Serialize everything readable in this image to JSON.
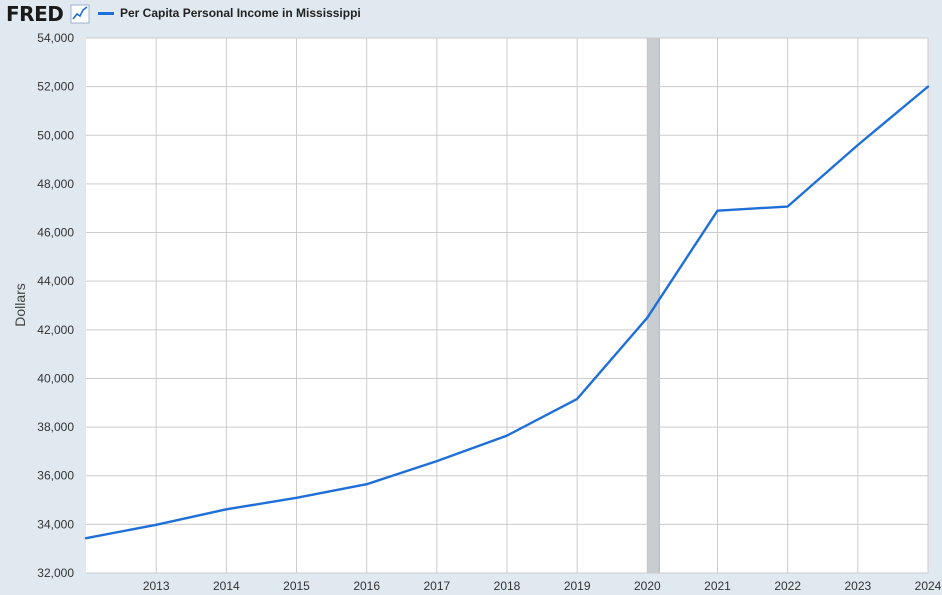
{
  "header": {
    "logo_text": "FRED",
    "logo_icon": "line-chart-icon",
    "legend_label": "Per Capita Personal Income in Mississippi"
  },
  "colors": {
    "line": "#1f6fd8",
    "background": "#e1e9f0",
    "plot_area": "#ffffff",
    "grid": "#cccccc",
    "recession": "#c8cdd2"
  },
  "chart_data": {
    "type": "line",
    "ylabel": "Dollars",
    "ylim": [
      32000,
      54000
    ],
    "xlim": [
      2012,
      2024
    ],
    "y_ticks": [
      32000,
      34000,
      36000,
      38000,
      40000,
      42000,
      44000,
      46000,
      48000,
      50000,
      52000,
      54000
    ],
    "y_tick_labels": [
      "32,000",
      "34,000",
      "36,000",
      "38,000",
      "40,000",
      "42,000",
      "44,000",
      "46,000",
      "48,000",
      "50,000",
      "52,000",
      "54,000"
    ],
    "x_ticks": [
      2013,
      2014,
      2015,
      2016,
      2017,
      2018,
      2019,
      2020,
      2021,
      2022,
      2023,
      2024
    ],
    "x_tick_labels": [
      "2013",
      "2014",
      "2015",
      "2016",
      "2017",
      "2018",
      "2019",
      "2020",
      "2021",
      "2022",
      "2023",
      "2024"
    ],
    "grid": true,
    "recession_shading": [
      [
        2020.0,
        2020.17
      ]
    ],
    "series": [
      {
        "name": "Per Capita Personal Income in Mississippi",
        "x": [
          2012,
          2013,
          2014,
          2015,
          2016,
          2017,
          2018,
          2019,
          2020,
          2021,
          2022,
          2023,
          2024
        ],
        "values": [
          33432,
          33980,
          34620,
          35090,
          35650,
          36600,
          37650,
          39160,
          42500,
          46900,
          47070,
          49600,
          52000
        ]
      }
    ]
  }
}
